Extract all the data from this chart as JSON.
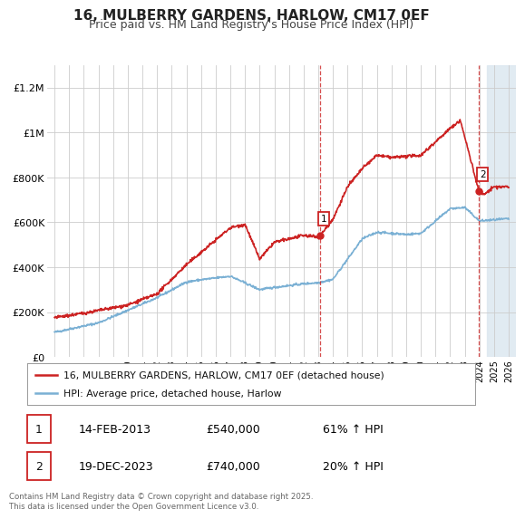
{
  "title": "16, MULBERRY GARDENS, HARLOW, CM17 0EF",
  "subtitle": "Price paid vs. HM Land Registry's House Price Index (HPI)",
  "xlim": [
    1994.5,
    2026.5
  ],
  "ylim": [
    0,
    1300000
  ],
  "yticks": [
    0,
    200000,
    400000,
    600000,
    800000,
    1000000,
    1200000
  ],
  "ytick_labels": [
    "£0",
    "£200K",
    "£400K",
    "£600K",
    "£800K",
    "£1M",
    "£1.2M"
  ],
  "sale1_x": 2013.12,
  "sale1_y": 540000,
  "sale2_x": 2023.97,
  "sale2_y": 740000,
  "sale1_date": "14-FEB-2013",
  "sale1_price": "£540,000",
  "sale1_hpi": "61% ↑ HPI",
  "sale2_date": "19-DEC-2023",
  "sale2_price": "£740,000",
  "sale2_hpi": "20% ↑ HPI",
  "red_color": "#cc2222",
  "blue_color": "#7ab0d4",
  "shaded_color": "#dce8f0",
  "legend1": "16, MULBERRY GARDENS, HARLOW, CM17 0EF (detached house)",
  "legend2": "HPI: Average price, detached house, Harlow",
  "footer": "Contains HM Land Registry data © Crown copyright and database right 2025.\nThis data is licensed under the Open Government Licence v3.0.",
  "title_fontsize": 11,
  "subtitle_fontsize": 9
}
